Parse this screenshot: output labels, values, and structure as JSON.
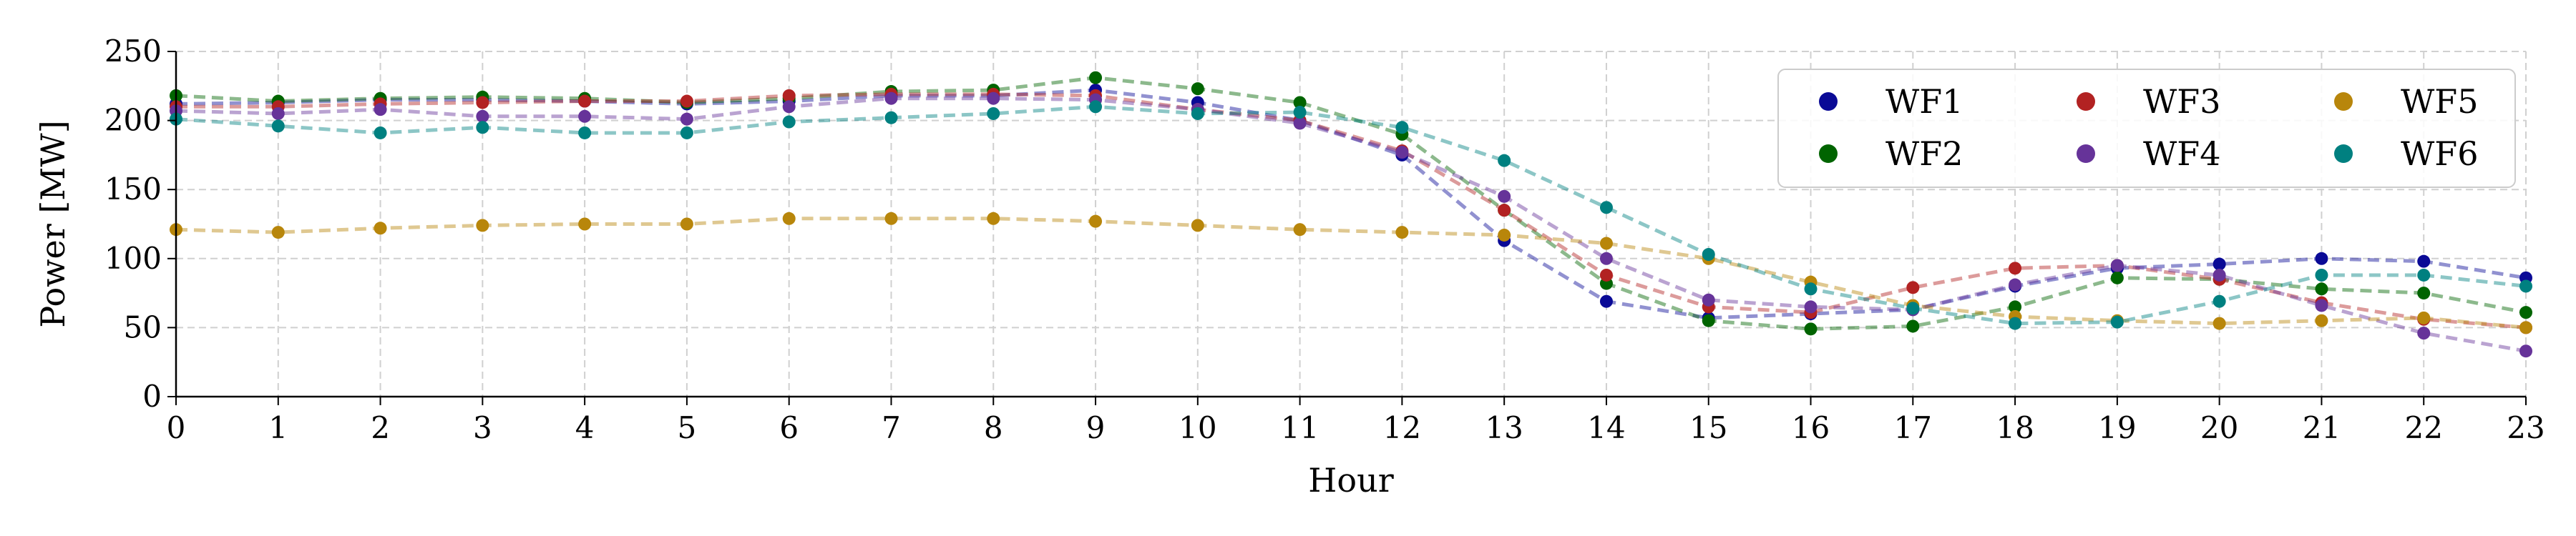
{
  "chart_data": {
    "type": "line",
    "title": "",
    "xlabel": "Hour",
    "ylabel": "Power [MW]",
    "xlim": [
      0,
      23
    ],
    "ylim": [
      0,
      250
    ],
    "x": [
      0,
      1,
      2,
      3,
      4,
      5,
      6,
      7,
      8,
      9,
      10,
      11,
      12,
      13,
      14,
      15,
      16,
      17,
      18,
      19,
      20,
      21,
      22,
      23
    ],
    "x_ticks": [
      0,
      1,
      2,
      3,
      4,
      5,
      6,
      7,
      8,
      9,
      10,
      11,
      12,
      13,
      14,
      15,
      16,
      17,
      18,
      19,
      20,
      21,
      22,
      23
    ],
    "y_ticks": [
      0,
      50,
      100,
      150,
      200,
      250
    ],
    "grid": true,
    "legend_position": "top-right",
    "legend_columns": 3,
    "line_style": "dashed",
    "series": [
      {
        "name": "WF1",
        "color": "#0a0a96",
        "values": [
          212,
          213,
          215,
          215,
          214,
          212,
          214,
          218,
          218,
          222,
          213,
          200,
          175,
          113,
          69,
          57,
          60,
          63,
          80,
          93,
          96,
          100,
          98,
          86
        ]
      },
      {
        "name": "WF2",
        "color": "#006400",
        "values": [
          218,
          214,
          216,
          217,
          216,
          213,
          216,
          221,
          222,
          231,
          223,
          213,
          190,
          135,
          82,
          55,
          49,
          51,
          65,
          86,
          85,
          78,
          75,
          61
        ]
      },
      {
        "name": "WF3",
        "color": "#b22222",
        "values": [
          210,
          210,
          212,
          213,
          214,
          214,
          218,
          219,
          219,
          218,
          208,
          200,
          178,
          135,
          88,
          65,
          61,
          79,
          93,
          95,
          85,
          68,
          56,
          50
        ]
      },
      {
        "name": "WF4",
        "color": "#663399",
        "values": [
          207,
          205,
          208,
          203,
          203,
          201,
          210,
          216,
          216,
          215,
          208,
          198,
          177,
          145,
          100,
          70,
          65,
          63,
          81,
          95,
          88,
          66,
          46,
          33
        ]
      },
      {
        "name": "WF5",
        "color": "#b8860b",
        "values": [
          121,
          119,
          122,
          124,
          125,
          125,
          129,
          129,
          129,
          127,
          124,
          121,
          119,
          117,
          111,
          100,
          83,
          66,
          58,
          55,
          53,
          55,
          57,
          50
        ]
      },
      {
        "name": "WF6",
        "color": "#008080",
        "values": [
          201,
          196,
          191,
          195,
          191,
          191,
          199,
          202,
          205,
          210,
          205,
          206,
          195,
          171,
          137,
          103,
          78,
          64,
          53,
          54,
          69,
          88,
          88,
          80
        ]
      }
    ]
  }
}
